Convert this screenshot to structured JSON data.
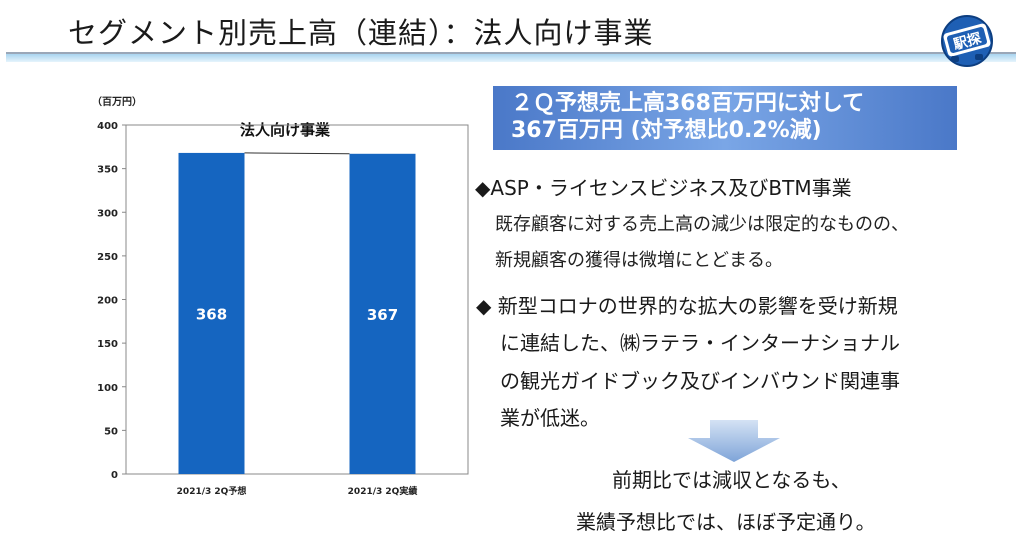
{
  "header": {
    "title": "セグメント別売上高（連結）：法人向け事業",
    "logo_text": "駅探"
  },
  "chart_data": {
    "type": "bar",
    "title": "法人向け事業",
    "unit_label": "（百万円）",
    "categories": [
      "2021/3 2Q予想",
      "2021/3 2Q実績"
    ],
    "values": [
      368,
      367
    ],
    "value_labels": [
      "368",
      "367"
    ],
    "ylim": [
      0,
      400
    ],
    "yticks": [
      "0",
      "50",
      "100",
      "150",
      "200",
      "250",
      "300",
      "350",
      "400"
    ],
    "bar_color": "#1565c0",
    "grid": false
  },
  "headline": {
    "line1": "２Ｑ予想売上高368百万円に対して",
    "line2": "367百万円 (対予想比0.2%減)"
  },
  "bullet1": {
    "title": "◆ASP・ライセンスビジネス及びBTM事業",
    "lines": [
      "既存顧客に対する売上高の減少は限定的なものの、",
      "新規顧客の獲得は微増にとどまる。"
    ]
  },
  "bullet2": {
    "lines": [
      "◆ 新型コロナの世界的な拡大の影響を受け新規",
      "に連結した、㈱ラテラ・インターナショナル",
      "の観光ガイドブック及びインバウンド関連事",
      "業が低迷。"
    ]
  },
  "conclusion": {
    "line1": "前期比では減収となるも、",
    "line2": "業績予想比では、ほぼ予定通り。"
  }
}
